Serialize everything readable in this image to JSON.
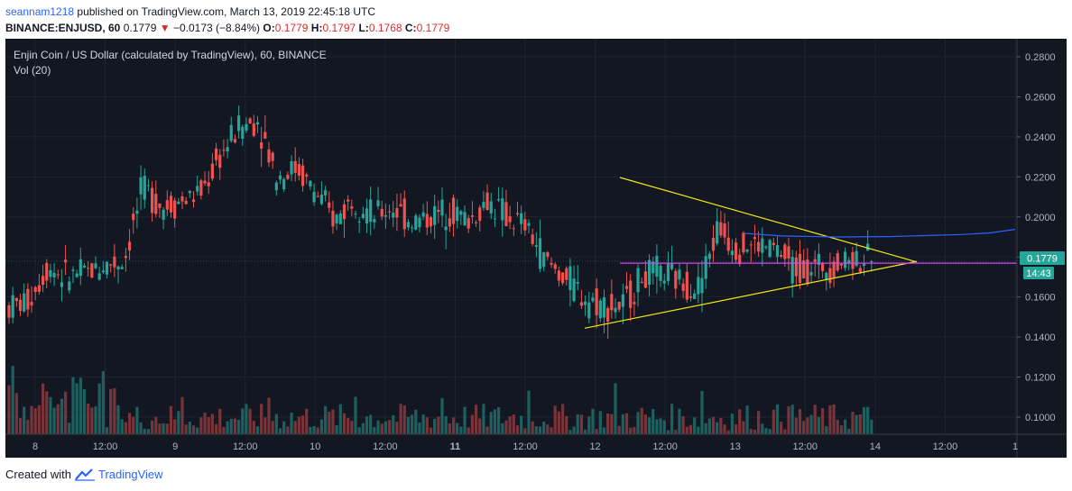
{
  "header": {
    "user": "seannam1218",
    "published": " published on TradingView.com, March 13, 2019 22:45:18 UTC",
    "symbol": "BINANCE:ENJUSD, 60",
    "last": "0.1779",
    "arrow": "▼",
    "change": "−0.0173 (−8.84%)",
    "o_label": "O:",
    "o": "0.1779",
    "h_label": "H:",
    "h": "0.1797",
    "l_label": "L:",
    "l": "0.1768",
    "c_label": "C:",
    "c": "0.1779"
  },
  "legend": {
    "title": "Enjin Coin / US Dollar (calculated by TradingView), 60, BINANCE",
    "vol": "Vol (20)"
  },
  "price_badge": "0.1779",
  "time_badge": "14:43",
  "footer": {
    "created": "Created with",
    "brand": "TradingView"
  },
  "colors": {
    "up": "#26a69a",
    "down": "#ef5350",
    "trend": "#f5e614",
    "level": "#e040fb",
    "ma": "#2962ff",
    "bg": "#131722"
  },
  "chart_data": {
    "type": "candlestick",
    "title": "Enjin Coin / US Dollar (calculated by TradingView), 60, BINANCE",
    "yticks": [
      "0.2800",
      "0.2600",
      "0.2400",
      "0.2200",
      "0.2000",
      "0.1800",
      "0.1600",
      "0.1400",
      "0.1200",
      "0.1000"
    ],
    "ylim": [
      0.0933,
      0.2823
    ],
    "xticks": [
      "8",
      "12:00",
      "9",
      "12:00",
      "10",
      "12:00",
      "11",
      "12:00",
      "12",
      "12:00",
      "13",
      "12:00",
      "14",
      "12:00",
      "1"
    ],
    "bold_xticks": [
      "11"
    ],
    "key_prices": [
      [
        0.152,
        0.16,
        0.148,
        0.155
      ],
      [
        0.155,
        0.162,
        0.15,
        0.158
      ],
      [
        0.178,
        0.206,
        0.14,
        0.175
      ],
      [
        0.175,
        0.185,
        0.165,
        0.17
      ],
      [
        0.17,
        0.176,
        0.165,
        0.172
      ],
      [
        0.172,
        0.178,
        0.168,
        0.176
      ],
      [
        0.176,
        0.18,
        0.17,
        0.178
      ],
      [
        0.178,
        0.23,
        0.176,
        0.215
      ],
      [
        0.215,
        0.222,
        0.195,
        0.205
      ],
      [
        0.205,
        0.212,
        0.198,
        0.208
      ],
      [
        0.208,
        0.218,
        0.202,
        0.212
      ],
      [
        0.212,
        0.25,
        0.208,
        0.23
      ],
      [
        0.23,
        0.255,
        0.22,
        0.245
      ],
      [
        0.245,
        0.257,
        0.238,
        0.248
      ],
      [
        0.248,
        0.252,
        0.21,
        0.22
      ],
      [
        0.22,
        0.235,
        0.212,
        0.225
      ],
      [
        0.225,
        0.232,
        0.205,
        0.212
      ],
      [
        0.212,
        0.215,
        0.19,
        0.198
      ],
      [
        0.198,
        0.218,
        0.195,
        0.21
      ],
      [
        0.21,
        0.214,
        0.195,
        0.2
      ],
      [
        0.2,
        0.212,
        0.193,
        0.205
      ],
      [
        0.205,
        0.21,
        0.195,
        0.198
      ],
      [
        0.198,
        0.204,
        0.192,
        0.2
      ],
      [
        0.2,
        0.208,
        0.196,
        0.204
      ],
      [
        0.204,
        0.207,
        0.196,
        0.198
      ],
      [
        0.198,
        0.212,
        0.195,
        0.208
      ],
      [
        0.208,
        0.211,
        0.198,
        0.2
      ],
      [
        0.2,
        0.204,
        0.192,
        0.195
      ],
      [
        0.195,
        0.198,
        0.175,
        0.178
      ],
      [
        0.178,
        0.18,
        0.165,
        0.17
      ],
      [
        0.17,
        0.173,
        0.15,
        0.16
      ],
      [
        0.16,
        0.164,
        0.148,
        0.156
      ],
      [
        0.156,
        0.16,
        0.152,
        0.155
      ],
      [
        0.155,
        0.178,
        0.153,
        0.17
      ],
      [
        0.17,
        0.177,
        0.165,
        0.172
      ],
      [
        0.172,
        0.176,
        0.166,
        0.168
      ],
      [
        0.168,
        0.172,
        0.162,
        0.165
      ],
      [
        0.165,
        0.203,
        0.162,
        0.195
      ],
      [
        0.195,
        0.2,
        0.18,
        0.185
      ],
      [
        0.185,
        0.199,
        0.178,
        0.186
      ],
      [
        0.186,
        0.188,
        0.18,
        0.184
      ],
      [
        0.184,
        0.186,
        0.17,
        0.174
      ],
      [
        0.174,
        0.178,
        0.168,
        0.175
      ],
      [
        0.175,
        0.177,
        0.17,
        0.176
      ],
      [
        0.176,
        0.181,
        0.172,
        0.18
      ],
      [
        0.18,
        0.184,
        0.176,
        0.1779
      ]
    ],
    "volume_note": "volume bars shown by relative height only",
    "annotations": {
      "descending_trendline": [
        [
          0.2197,
          0.1775
        ]
      ],
      "ascending_trendline": [
        [
          0.1444,
          0.1778
        ]
      ],
      "horizontal_level": 0.1769,
      "moving_average_visible": true
    },
    "last_price": 0.1779,
    "grid": true
  }
}
